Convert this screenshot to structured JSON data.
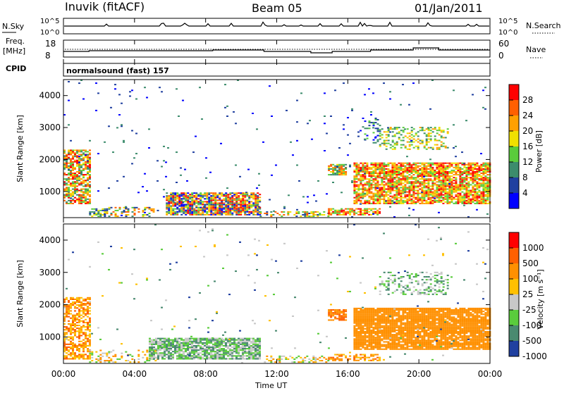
{
  "header": {
    "site": "Inuvik (fitACF)",
    "beam": "Beam 05",
    "date": "01/Jan/2011"
  },
  "top_panels": {
    "nsky_label": "N.Sky",
    "nsky_ticks": [
      "10^5",
      "10^0"
    ],
    "nsearch_label": "N.Search",
    "nsearch_ticks": [
      "10^5",
      "10^0"
    ],
    "freq_label": "Freq.",
    "freq_unit": "[MHz]",
    "freq_ticks": [
      "18",
      "8"
    ],
    "nave_ticks": [
      "60",
      "0"
    ],
    "nave_label": "Nave",
    "cpid_label": "CPID",
    "cpid_text": "normalsound (fast) 157"
  },
  "colors": {
    "power": [
      "#0000ff",
      "#2040a0",
      "#3c8c6c",
      "#5acc3c",
      "#f0e000",
      "#ffa000",
      "#ff6000",
      "#ff0000"
    ],
    "velocity": [
      "#2040a0",
      "#4a8a70",
      "#5acc3c",
      "#c8c8c8",
      "#ffc000",
      "#ff9000",
      "#ff6000",
      "#ff0000"
    ]
  },
  "chart_data": [
    {
      "type": "heatmap",
      "title": "",
      "xlabel": "Time UT",
      "ylabel": "Slant Range [km]",
      "x_ticks": [
        "00:00",
        "04:00",
        "08:00",
        "12:00",
        "16:00",
        "20:00",
        "00:00"
      ],
      "y_ticks": [
        "1000",
        "2000",
        "3000",
        "4000"
      ],
      "colorbar_label": "Power [dB]",
      "colorbar_ticks": [
        "28",
        "24",
        "20",
        "16",
        "12",
        "8",
        "4"
      ]
    },
    {
      "type": "heatmap",
      "title": "",
      "xlabel": "Time UT",
      "ylabel": "Slant Range [km]",
      "x_ticks": [
        "00:00",
        "04:00",
        "08:00",
        "12:00",
        "16:00",
        "20:00",
        "00:00"
      ],
      "y_ticks": [
        "1000",
        "2000",
        "3000",
        "4000"
      ],
      "colorbar_label": "Velocity [m s⁻¹]",
      "colorbar_ticks": [
        "1000",
        "500",
        "100",
        "25",
        "-25",
        "-100",
        "-500",
        "-1000"
      ]
    }
  ]
}
